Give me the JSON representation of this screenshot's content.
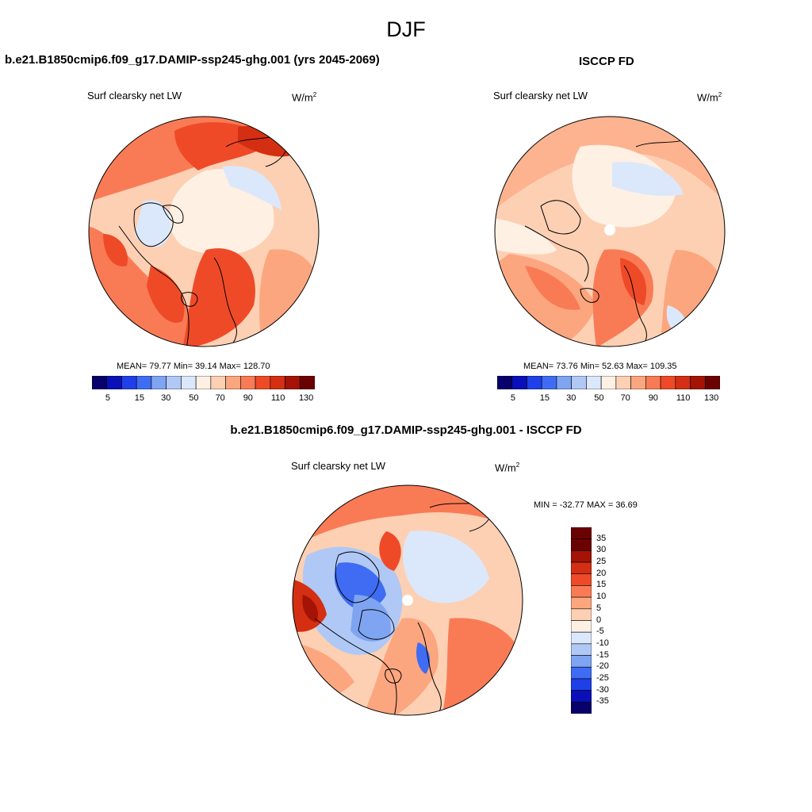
{
  "suptitle": "DJF",
  "colors": {
    "abs_scale": [
      "#08006b",
      "#0a0fb8",
      "#1f3fe8",
      "#3f6cf2",
      "#7fa4f2",
      "#b0c8f5",
      "#dbe8fb",
      "#fff0e4",
      "#fdd0b4",
      "#fca67f",
      "#f97b55",
      "#ef4a28",
      "#d42f12",
      "#a41305",
      "#6b0202"
    ],
    "diff_scale": [
      "#08006b",
      "#0a0fb8",
      "#1f3fe8",
      "#3f6cf2",
      "#7fa4f2",
      "#b0c8f5",
      "#dbe8fb",
      "#fff0e4",
      "#fdd0b4",
      "#fca67f",
      "#f97b55",
      "#ef4a28",
      "#d42f12",
      "#a41305",
      "#6b0202"
    ]
  },
  "panels": {
    "model": {
      "title": "b.e21.B1850cmip6.f09_g17.DAMIP-ssp245-ghg.001 (yrs 2045-2069)",
      "variable": "Surf clearsky net LW",
      "units": "W/m",
      "units_sup": "2",
      "stats": "MEAN=  79.77  Min=  39.14  Max= 128.70",
      "colorbar_labels": [
        "5",
        "15",
        "30",
        "50",
        "70",
        "90",
        "110",
        "130"
      ]
    },
    "obs": {
      "title": "ISCCP FD",
      "variable": "Surf clearsky net LW",
      "units": "W/m",
      "units_sup": "2",
      "stats": "MEAN=  73.76  Min=  52.63  Max= 109.35",
      "colorbar_labels": [
        "5",
        "15",
        "30",
        "50",
        "70",
        "90",
        "110",
        "130"
      ]
    },
    "diff": {
      "title": "b.e21.B1850cmip6.f09_g17.DAMIP-ssp245-ghg.001 - ISCCP FD",
      "variable": "Surf clearsky net LW",
      "units": "W/m",
      "units_sup": "2",
      "stats": "MIN = -32.77 MAX =  36.69",
      "colorbar_labels": [
        "35",
        "30",
        "25",
        "20",
        "15",
        "10",
        "5",
        "0",
        "-5",
        "-10",
        "-15",
        "-20",
        "-25",
        "-30",
        "-35"
      ]
    }
  }
}
